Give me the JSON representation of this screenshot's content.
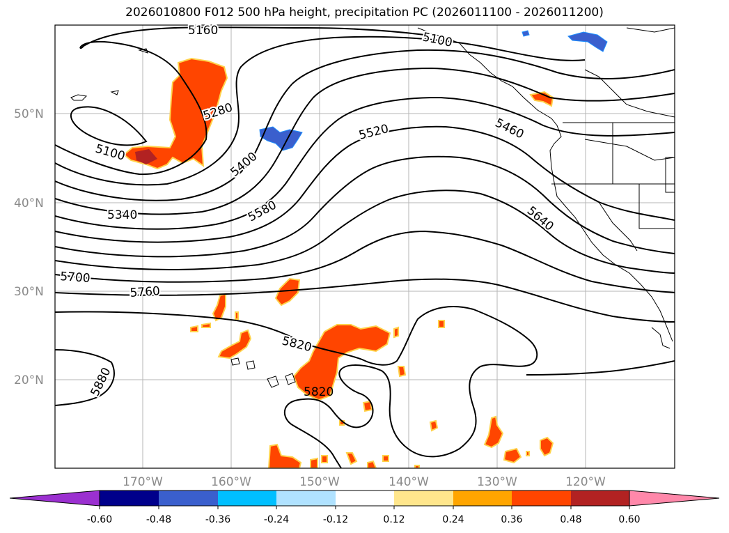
{
  "title": "2026010800 F012 500 hPa height, precipitation PC (2026011100 - 2026011200)",
  "map": {
    "lat_labels": [
      "50°N",
      "40°N",
      "30°N",
      "20°N"
    ],
    "lon_labels": [
      "170°W",
      "160°W",
      "150°W",
      "140°W",
      "130°W",
      "120°W"
    ],
    "contour_labels": [
      "5160",
      "5100",
      "5280",
      "5100",
      "5400",
      "5520",
      "5460",
      "5340",
      "5580",
      "5640",
      "5700",
      "5760",
      "5820",
      "5820",
      "5880"
    ]
  },
  "colorbar": {
    "ticks": [
      "-0.60",
      "-0.48",
      "-0.36",
      "-0.24",
      "-0.12",
      "0.12",
      "0.24",
      "0.36",
      "0.48",
      "0.60"
    ],
    "colors": [
      "#9b30d0",
      "#00008b",
      "#3a5fcd",
      "#00bfff",
      "#b0e2ff",
      "#ffffff",
      "#ffe68c",
      "#ffa500",
      "#ff4500",
      "#b22222",
      "#ff88aa",
      "#ff88aa"
    ]
  }
}
